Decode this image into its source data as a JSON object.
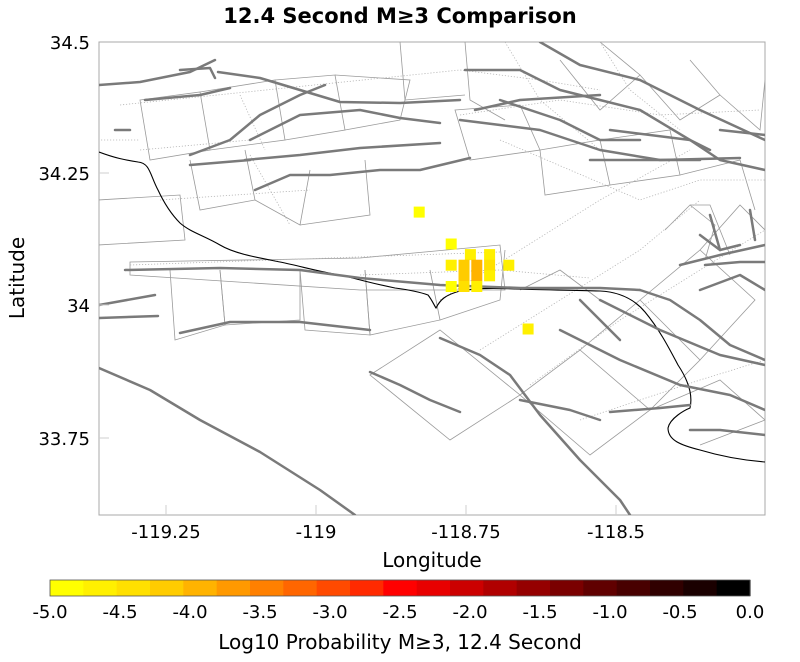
{
  "title": "12.4 Second M≥3 Comparison",
  "map": {
    "xlabel": "Longitude",
    "ylabel": "Latitude",
    "x_ticks": [
      "-119.25",
      "-119",
      "-118.75",
      "-118.5"
    ],
    "y_ticks": [
      "34.5",
      "34.25",
      "34",
      "33.75"
    ],
    "lon_range": [
      -119.37,
      -118.33
    ],
    "lat_range": [
      33.61,
      34.5
    ]
  },
  "colorbar": {
    "label": "Log10 Probability M≥3, 12.4 Second",
    "ticks": [
      "-5.0",
      "-4.5",
      "-4.0",
      "-3.5",
      "-3.0",
      "-2.5",
      "-2.0",
      "-1.5",
      "-1.0",
      "-0.5",
      "0.0"
    ],
    "range": [
      -5.0,
      0.0
    ],
    "colors": [
      "#ffff00",
      "#fff000",
      "#ffe000",
      "#ffcc00",
      "#ffb300",
      "#ff9900",
      "#ff8000",
      "#ff6600",
      "#ff4a00",
      "#ff2a00",
      "#ff0000",
      "#e80000",
      "#cc0000",
      "#b00000",
      "#950000",
      "#7a0000",
      "#600000",
      "#480000",
      "#300000",
      "#1a0000",
      "#000000"
    ]
  },
  "chart_data": {
    "type": "heatmap",
    "title": "12.4 Second M≥3 Comparison",
    "xlabel": "Longitude",
    "ylabel": "Latitude",
    "xlim": [
      -119.37,
      -118.33
    ],
    "ylim": [
      33.61,
      34.5
    ],
    "colorbar_label": "Log10 Probability M≥3, 12.4 Second",
    "colorbar_range": [
      -5.0,
      0.0
    ],
    "cells": [
      {
        "lon": -118.87,
        "lat": 34.18,
        "value": -4.9
      },
      {
        "lon": -118.82,
        "lat": 34.12,
        "value": -4.9
      },
      {
        "lon": -118.79,
        "lat": 34.1,
        "value": -4.8
      },
      {
        "lon": -118.76,
        "lat": 34.1,
        "value": -4.8
      },
      {
        "lon": -118.82,
        "lat": 34.08,
        "value": -4.7
      },
      {
        "lon": -118.8,
        "lat": 34.08,
        "value": -4.2
      },
      {
        "lon": -118.78,
        "lat": 34.08,
        "value": -4.0
      },
      {
        "lon": -118.76,
        "lat": 34.08,
        "value": -4.6
      },
      {
        "lon": -118.73,
        "lat": 34.08,
        "value": -4.8
      },
      {
        "lon": -118.8,
        "lat": 34.06,
        "value": -4.3
      },
      {
        "lon": -118.78,
        "lat": 34.06,
        "value": -4.1
      },
      {
        "lon": -118.76,
        "lat": 34.06,
        "value": -4.7
      },
      {
        "lon": -118.82,
        "lat": 34.04,
        "value": -4.9
      },
      {
        "lon": -118.8,
        "lat": 34.04,
        "value": -4.6
      },
      {
        "lon": -118.78,
        "lat": 34.04,
        "value": -4.7
      },
      {
        "lon": -118.7,
        "lat": 33.96,
        "value": -4.8
      }
    ]
  }
}
